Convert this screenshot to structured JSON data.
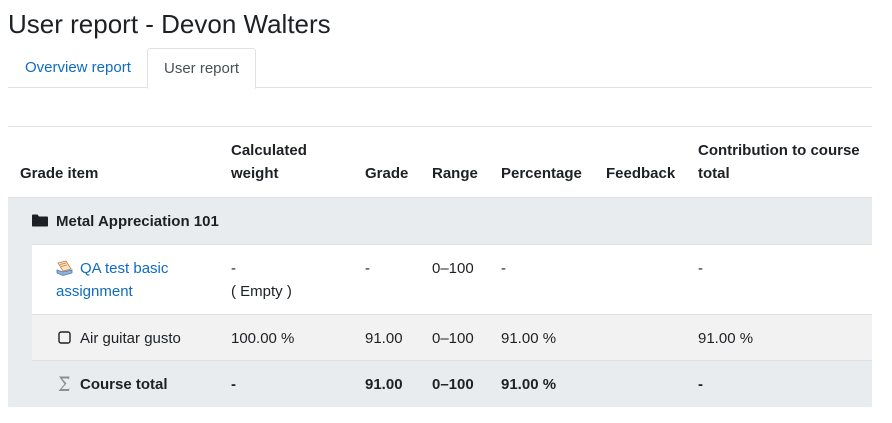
{
  "page": {
    "title": "User report - Devon Walters"
  },
  "tabs": [
    {
      "label": "Overview report",
      "active": false
    },
    {
      "label": "User report",
      "active": true
    }
  ],
  "table": {
    "headers": {
      "grade_item": "Grade item",
      "weight_line1": "Calculated",
      "weight_line2": "weight",
      "grade": "Grade",
      "range": "Range",
      "percentage": "Percentage",
      "feedback": "Feedback",
      "contribution_line1": "Contribution to course",
      "contribution_line2": "total"
    },
    "category": {
      "name": "Metal Appreciation 101",
      "icon": "folder-icon"
    },
    "rows": [
      {
        "name_line1": "QA test basic",
        "name_line2": "assignment",
        "icon": "assignment-icon",
        "weight": "-",
        "weight_note": "( Empty )",
        "grade": "-",
        "range": "0–100",
        "percentage": "-",
        "feedback": "",
        "contribution": "-"
      },
      {
        "name": "Air guitar gusto",
        "icon": "manual-item-icon",
        "weight": "100.00 %",
        "grade": "91.00",
        "range": "0–100",
        "percentage": "91.00 %",
        "feedback": "",
        "contribution": "91.00 %"
      }
    ],
    "total": {
      "name": "Course total",
      "icon": "sigma-icon",
      "weight": "-",
      "grade": "91.00",
      "range": "0–100",
      "percentage": "91.00 %",
      "contribution": "-"
    }
  }
}
